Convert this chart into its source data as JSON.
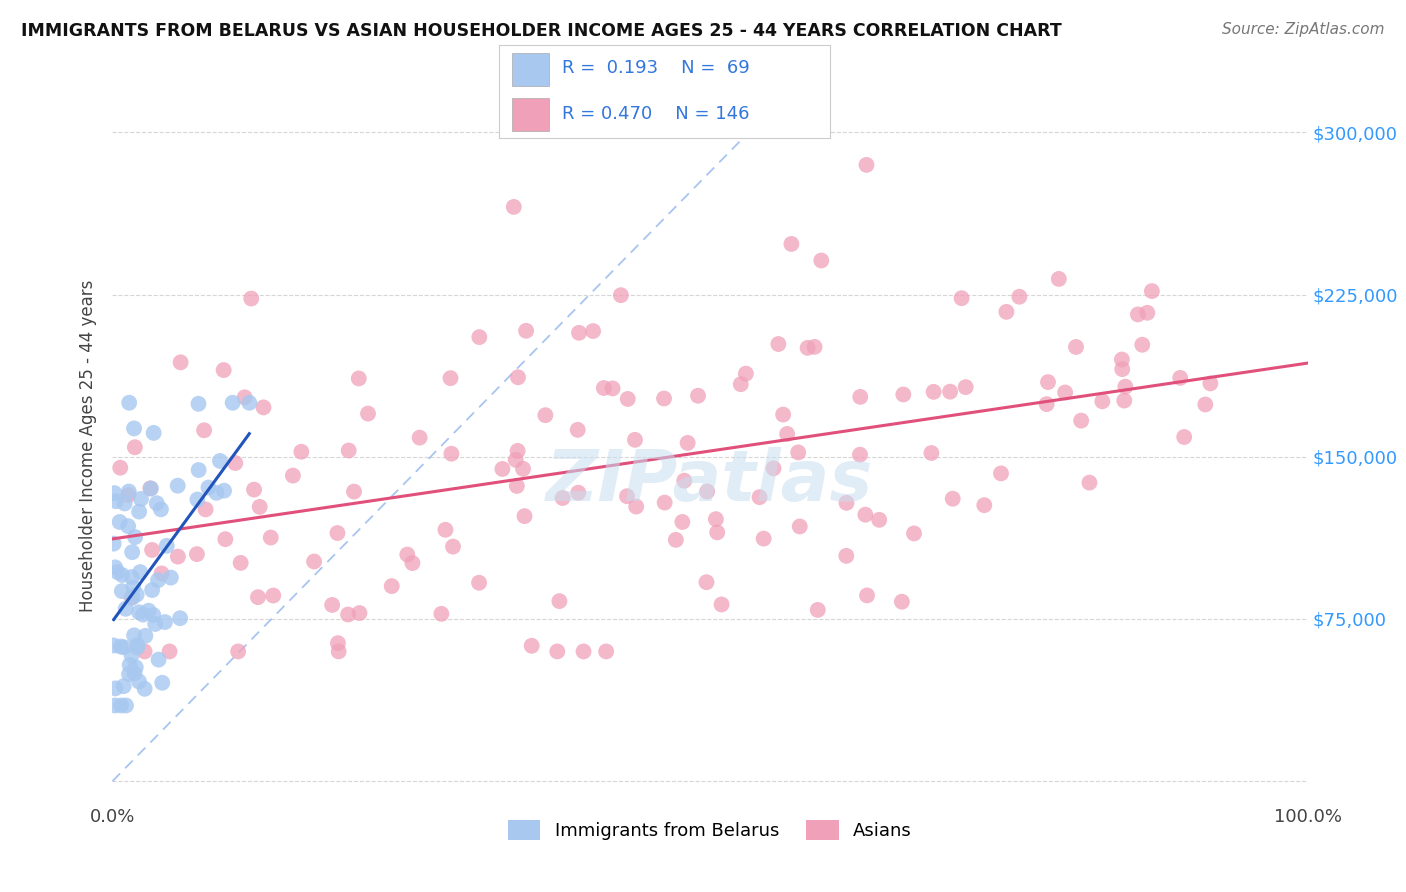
{
  "title": "IMMIGRANTS FROM BELARUS VS ASIAN HOUSEHOLDER INCOME AGES 25 - 44 YEARS CORRELATION CHART",
  "source": "Source: ZipAtlas.com",
  "ylabel": "Householder Income Ages 25 - 44 years",
  "xlim": [
    0.0,
    100.0
  ],
  "ylim": [
    -10000,
    320000
  ],
  "yticks": [
    0,
    75000,
    150000,
    225000,
    300000
  ],
  "ytick_labels_right": [
    "",
    "$75,000",
    "$150,000",
    "$225,000",
    "$300,000"
  ],
  "xtick_labels": [
    "0.0%",
    "100.0%"
  ],
  "background_color": "#ffffff",
  "grid_color": "#cccccc",
  "legend_R1": "0.193",
  "legend_N1": "69",
  "legend_R2": "0.470",
  "legend_N2": "146",
  "series1_color": "#a8c8f0",
  "series2_color": "#f0a0b8",
  "trend1_color": "#2255bb",
  "trend2_color": "#e0507a",
  "diagonal_color": "#99bbee",
  "series1_label": "Immigrants from Belarus",
  "series2_label": "Asians",
  "watermark": "ZIPatlas",
  "watermark_color": "#c8ddf0"
}
